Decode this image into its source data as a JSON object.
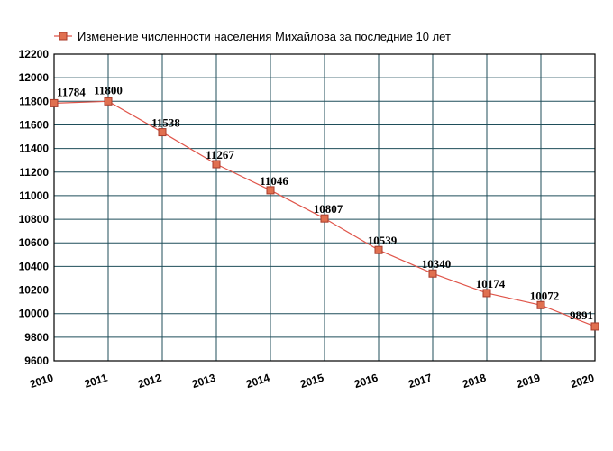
{
  "colors": {
    "line": "#e0554a",
    "marker_fill": "#e07050",
    "marker_stroke": "#a83a2a",
    "grid": "#1f4e5a",
    "background": "#ffffff"
  },
  "chart_data": {
    "type": "line",
    "title": "",
    "xlabel": "",
    "ylabel": "",
    "x": [
      "2010",
      "2011",
      "2012",
      "2013",
      "2014",
      "2015",
      "2016",
      "2017",
      "2018",
      "2019",
      "2020"
    ],
    "series": [
      {
        "name": "Изменение численности населения Михайлова за последние 10 лет",
        "values": [
          11784,
          11800,
          11538,
          11267,
          11046,
          10807,
          10539,
          10340,
          10174,
          10072,
          9891
        ],
        "labels": [
          "11784",
          "11800",
          "11538",
          "11267",
          "11046",
          "10807",
          "10539",
          "10340",
          "10174",
          "10072",
          "9891"
        ]
      }
    ],
    "ylim": [
      9600,
      12200
    ],
    "y_ticks": [
      "9600",
      "9800",
      "10000",
      "10200",
      "10400",
      "10600",
      "10800",
      "11000",
      "11200",
      "11400",
      "11600",
      "11800",
      "12000",
      "12200"
    ],
    "grid": true,
    "legend_position": "top"
  }
}
